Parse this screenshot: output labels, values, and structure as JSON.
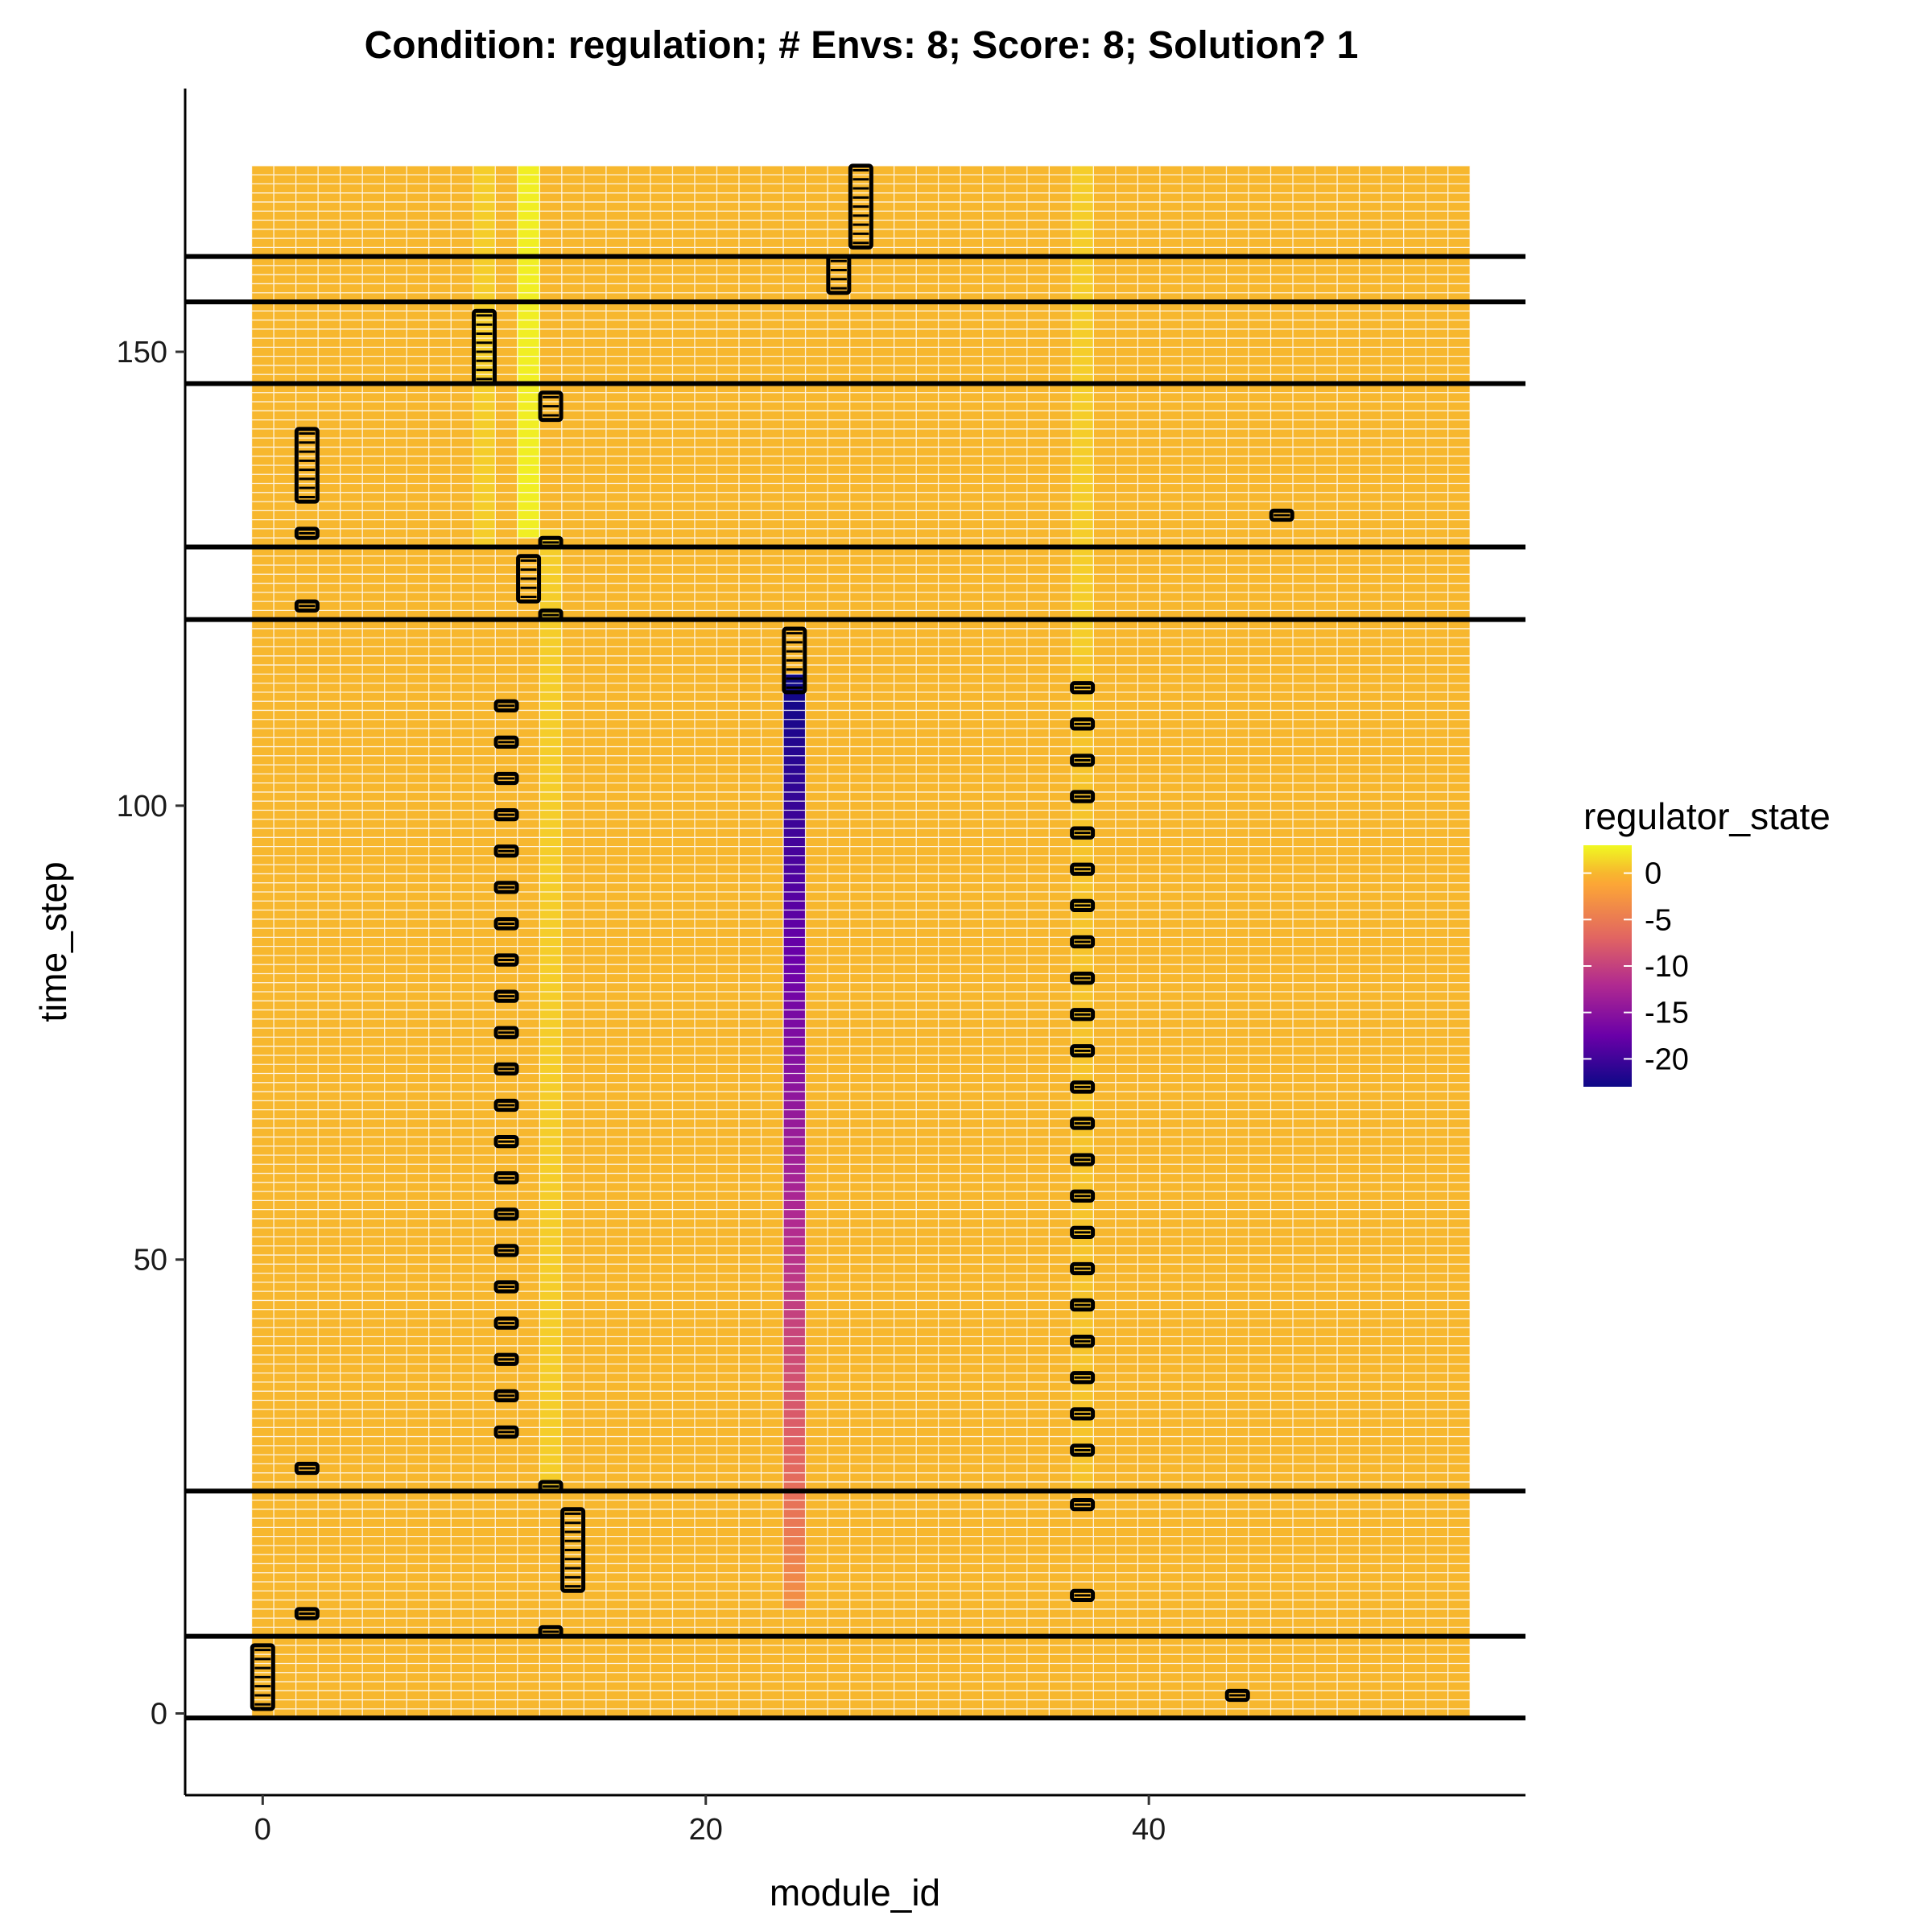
{
  "chart_data": {
    "type": "heatmap",
    "title": "Condition: regulation; # Envs: 8; Score: 8; Solution? 1",
    "xlabel": "module_id",
    "ylabel": "time_step",
    "xlim": [
      -3.5,
      57
    ],
    "ylim": [
      -9,
      179
    ],
    "x_ticks": [
      0,
      20,
      40
    ],
    "y_ticks": [
      0,
      50,
      100,
      150
    ],
    "x_tick_labels": [
      "0",
      "20",
      "40"
    ],
    "y_tick_labels": [
      "0",
      "50",
      "100",
      "150"
    ],
    "grid": false,
    "heatmap": {
      "modules": [
        0,
        54
      ],
      "time_steps": [
        0,
        170
      ],
      "default_state": 0,
      "elevated_columns": [
        {
          "module": 10,
          "from": 129,
          "to": 170,
          "state": 1
        },
        {
          "module": 12,
          "from": 130,
          "to": 170,
          "state": 2.5
        },
        {
          "module": 13,
          "from": 25,
          "to": 130,
          "state": 1
        },
        {
          "module": 37,
          "from": 116,
          "to": 170,
          "state": 1
        },
        {
          "module": 37,
          "from": 25,
          "to": 116,
          "state": 0.6
        }
      ],
      "declining_column": {
        "module": 24,
        "from_step": 12,
        "to_step": 114,
        "start_state": -3,
        "end_state": -23,
        "description_none": ""
      }
    },
    "environment_changes": [
      0,
      9,
      25,
      121,
      129,
      147,
      156,
      161
    ],
    "event_markers": [
      {
        "module": 0,
        "steps": [
          1,
          2,
          3,
          4,
          5,
          6,
          7
        ]
      },
      {
        "module": 2,
        "steps": [
          11,
          27,
          122,
          130,
          134,
          135,
          136,
          137,
          138,
          139,
          140,
          141
        ]
      },
      {
        "module": 10,
        "steps": [
          147,
          148,
          149,
          150,
          151,
          152,
          153,
          154
        ]
      },
      {
        "module": 11,
        "steps": [
          31,
          35,
          39,
          43,
          47,
          51,
          55,
          59,
          63,
          67,
          71,
          75,
          79,
          83,
          87,
          91,
          95,
          99,
          103,
          107,
          111
        ]
      },
      {
        "module": 12,
        "steps": [
          123,
          124,
          125,
          126,
          127
        ]
      },
      {
        "module": 13,
        "steps": [
          9,
          25,
          121,
          129,
          143,
          144,
          145
        ]
      },
      {
        "module": 14,
        "steps": [
          14,
          15,
          16,
          17,
          18,
          19,
          20,
          21,
          22
        ]
      },
      {
        "module": 24,
        "steps": [
          113,
          114,
          115,
          116,
          117,
          118,
          119
        ]
      },
      {
        "module": 26,
        "steps": [
          157,
          158,
          159,
          160
        ]
      },
      {
        "module": 27,
        "steps": [
          162,
          163,
          164,
          165,
          166,
          167,
          168,
          169,
          170
        ]
      },
      {
        "module": 37,
        "steps": [
          13,
          23,
          29,
          33,
          37,
          41,
          45,
          49,
          53,
          57,
          61,
          65,
          69,
          73,
          77,
          81,
          85,
          89,
          93,
          97,
          101,
          105,
          109,
          113
        ]
      },
      {
        "module": 44,
        "steps": [
          2
        ]
      },
      {
        "module": 46,
        "steps": [
          132
        ]
      }
    ],
    "legend": {
      "title": "regulator_state",
      "range": [
        -23,
        3
      ],
      "ticks": [
        0,
        -5,
        -10,
        -15,
        -20
      ],
      "tick_labels": [
        "0",
        "-5",
        "-10",
        "-15",
        "-20"
      ],
      "colors": [
        "#0d0887",
        "#6a00a8",
        "#b12a90",
        "#e16462",
        "#fca636",
        "#f7b72e",
        "#f0f921"
      ],
      "placement": "right"
    }
  }
}
